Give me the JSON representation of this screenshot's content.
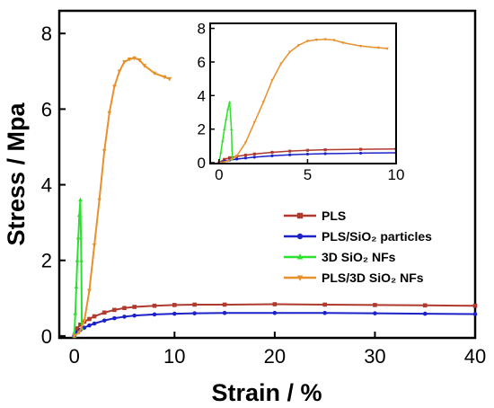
{
  "chart_data": [
    {
      "type": "line",
      "panel": "main",
      "xlabel": "Strain / %",
      "ylabel": "Stress / Mpa",
      "xlim": [
        -1.5,
        40
      ],
      "ylim": [
        -0.05,
        8.6
      ],
      "xticks": [
        0,
        10,
        20,
        30,
        40
      ],
      "yticks": [
        0,
        2,
        4,
        6,
        8
      ],
      "legend": {
        "placement": "bottom-right"
      },
      "series": [
        {
          "name": "PLS",
          "color": "#b03a2e",
          "marker": "square",
          "x": [
            0,
            0.3,
            0.6,
            1,
            1.5,
            2,
            3,
            4,
            5,
            6,
            8,
            10,
            12,
            15,
            20,
            25,
            30,
            35,
            40
          ],
          "y": [
            0,
            0.2,
            0.3,
            0.38,
            0.45,
            0.52,
            0.62,
            0.69,
            0.74,
            0.77,
            0.8,
            0.82,
            0.83,
            0.83,
            0.84,
            0.83,
            0.82,
            0.81,
            0.8
          ]
        },
        {
          "name": "PLS/SiO₂ particles",
          "color": "#1c22c8",
          "marker": "circle",
          "x": [
            0,
            0.3,
            0.6,
            1,
            1.5,
            2,
            3,
            4,
            5,
            6,
            8,
            10,
            12,
            15,
            20,
            25,
            30,
            35,
            40
          ],
          "y": [
            0,
            0.1,
            0.16,
            0.22,
            0.28,
            0.33,
            0.41,
            0.47,
            0.51,
            0.54,
            0.57,
            0.59,
            0.6,
            0.61,
            0.61,
            0.61,
            0.6,
            0.59,
            0.58
          ]
        },
        {
          "name": "3D SiO₂ NFs",
          "color": "#2ee02e",
          "marker": "triangle-up",
          "x": [
            0,
            0.1,
            0.2,
            0.3,
            0.4,
            0.5,
            0.6,
            0.7,
            0.75
          ],
          "y": [
            0,
            0.6,
            1.3,
            2.0,
            2.6,
            3.2,
            3.6,
            2.0,
            0.2
          ]
        },
        {
          "name": "PLS/3D SiO₂ NFs",
          "color": "#e8902a",
          "marker": "triangle-down",
          "x": [
            0,
            0.5,
            1,
            1.5,
            2,
            2.5,
            3,
            3.5,
            4,
            4.5,
            5,
            5.5,
            6,
            6.5,
            7,
            8,
            9,
            9.5
          ],
          "y": [
            0,
            0.1,
            0.4,
            1.2,
            2.4,
            3.6,
            4.9,
            5.9,
            6.6,
            7.0,
            7.25,
            7.32,
            7.35,
            7.3,
            7.15,
            6.95,
            6.85,
            6.8
          ]
        }
      ]
    },
    {
      "type": "line",
      "panel": "inset",
      "xlim": [
        -0.5,
        10
      ],
      "ylim": [
        -0.05,
        8.3
      ],
      "xticks": [
        0,
        5,
        10
      ],
      "yticks": [
        0,
        2,
        4,
        6,
        8
      ],
      "series_ref": "main"
    }
  ]
}
